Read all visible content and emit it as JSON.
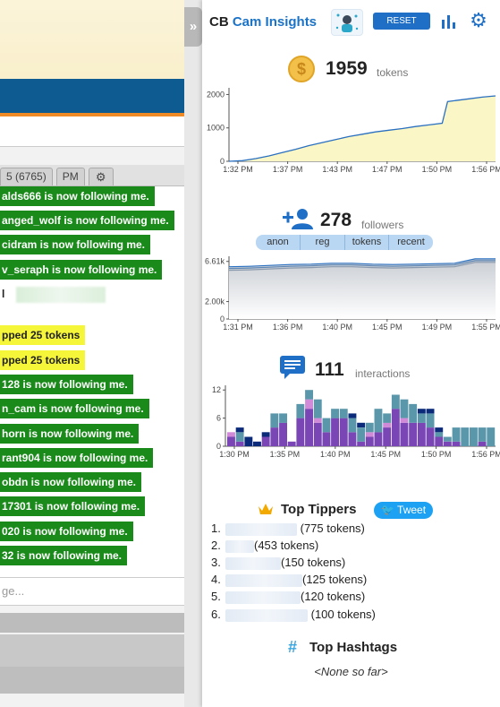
{
  "background": {
    "tabs": [
      "5 (6765)",
      "PM"
    ],
    "messages": [
      {
        "text": "alds666 is now following me.",
        "kind": "follow"
      },
      {
        "text": "anged_wolf is now following me.",
        "kind": "follow"
      },
      {
        "text": "cidram is now following me.",
        "kind": "follow"
      },
      {
        "text": "v_seraph is now following me.",
        "kind": "follow"
      },
      {
        "text": "l",
        "kind": "plain"
      },
      {
        "text": "pped 25 tokens",
        "kind": "tip"
      },
      {
        "text": "pped 25 tokens",
        "kind": "tip"
      },
      {
        "text": "128 is now following me.",
        "kind": "follow"
      },
      {
        "text": "n_cam is now following me.",
        "kind": "follow"
      },
      {
        "text": "horn is now following me.",
        "kind": "follow"
      },
      {
        "text": "rant904 is now following me.",
        "kind": "follow"
      },
      {
        "text": "obdn is now following me.",
        "kind": "follow"
      },
      {
        "text": "17301 is now following me.",
        "kind": "follow"
      },
      {
        "text": "020 is now following me.",
        "kind": "follow"
      },
      {
        "text": "32 is now following me.",
        "kind": "follow"
      }
    ],
    "chat_placeholder": "ge..."
  },
  "panel": {
    "collapse_label": "»",
    "brand_prefix": "CB",
    "brand_name": "Cam Insights",
    "reset_label": "RESET",
    "tokens": {
      "value": "1959",
      "unit": "tokens"
    },
    "followers": {
      "value": "278",
      "unit": "followers"
    },
    "interactions": {
      "value": "111",
      "unit": "interactions"
    },
    "follower_filters": [
      "anon",
      "reg",
      "tokens",
      "recent"
    ],
    "top_tippers_title": "Top Tippers",
    "tweet_label": "Tweet",
    "tippers": [
      {
        "rank": "1.",
        "amount": "(775 tokens)"
      },
      {
        "rank": "2.",
        "amount": "(453 tokens)"
      },
      {
        "rank": "3.",
        "amount": "(150 tokens)"
      },
      {
        "rank": "4.",
        "amount": "(125 tokens)"
      },
      {
        "rank": "5.",
        "amount": "(120 tokens)"
      },
      {
        "rank": "6.",
        "amount": "(100 tokens)"
      }
    ],
    "hashtags_title": "Top Hashtags",
    "hashtags_empty": "<None so far>"
  },
  "chart_data": [
    {
      "type": "area",
      "title": "",
      "x_ticks": [
        "1:32 PM",
        "1:37 PM",
        "1:43 PM",
        "1:47 PM",
        "1:50 PM",
        "1:56 PM"
      ],
      "y_ticks": [
        0,
        1000,
        2000
      ],
      "ylim": [
        0,
        2200
      ],
      "x": [
        0,
        0.05,
        0.1,
        0.15,
        0.2,
        0.25,
        0.3,
        0.35,
        0.4,
        0.45,
        0.5,
        0.55,
        0.6,
        0.65,
        0.7,
        0.75,
        0.8,
        0.82,
        0.85,
        0.9,
        0.95,
        1.0
      ],
      "values": [
        0,
        20,
        80,
        160,
        260,
        360,
        470,
        560,
        650,
        740,
        810,
        880,
        930,
        980,
        1040,
        1090,
        1140,
        1790,
        1820,
        1870,
        1920,
        1959
      ],
      "colors": {
        "line": "#2a70c0",
        "fill": "#fbf6c6"
      }
    },
    {
      "type": "area",
      "title": "",
      "x_ticks": [
        "1:31 PM",
        "1:36 PM",
        "1:40 PM",
        "1:45 PM",
        "1:49 PM",
        "1:55 PM"
      ],
      "y_ticks": [
        "0",
        "2.00k",
        "6.61k"
      ],
      "ylim": [
        0,
        7200
      ],
      "series": [
        {
          "name": "",
          "values": [
            6000,
            6050,
            6150,
            6250,
            6300,
            6400,
            6400,
            6300,
            6250,
            6300,
            6350,
            6400,
            6900,
            6900
          ]
        },
        {
          "name": "",
          "values": [
            5800,
            5850,
            5950,
            6050,
            6100,
            6200,
            6200,
            6100,
            6050,
            6100,
            6150,
            6200,
            6700,
            6700
          ]
        },
        {
          "name": "",
          "values": [
            5600,
            5650,
            5750,
            5850,
            5900,
            6000,
            6000,
            5900,
            5850,
            5900,
            5950,
            6000,
            6500,
            6500
          ]
        }
      ],
      "colors": {
        "top": "#2a70c0",
        "fill": "#d8dbe0"
      }
    },
    {
      "type": "bar",
      "title": "",
      "x_ticks": [
        "1:30 PM",
        "1:35 PM",
        "1:40 PM",
        "1:45 PM",
        "1:50 PM",
        "1:56 PM"
      ],
      "y_ticks": [
        0,
        6,
        12
      ],
      "ylim": [
        0,
        13
      ],
      "stacked": true,
      "series": [
        {
          "name": "",
          "color": "#7a45b5",
          "values": [
            2,
            1,
            0,
            0,
            2,
            4,
            5,
            1,
            6,
            8,
            5,
            3,
            6,
            6,
            3,
            1,
            2,
            3,
            4,
            8,
            5,
            5,
            5,
            4,
            2,
            1,
            1,
            0,
            0,
            1,
            0
          ]
        },
        {
          "name": "",
          "color": "#d08ad8",
          "values": [
            1,
            0,
            0,
            0,
            0,
            0,
            0,
            0,
            0,
            2,
            1,
            0,
            0,
            0,
            0,
            0,
            1,
            0,
            1,
            0,
            1,
            0,
            0,
            0,
            0,
            0,
            0,
            0,
            0,
            0,
            0
          ]
        },
        {
          "name": "",
          "color": "#5b97aa",
          "values": [
            0,
            2,
            0,
            0,
            0,
            3,
            2,
            0,
            3,
            2,
            4,
            3,
            2,
            2,
            3,
            3,
            2,
            5,
            2,
            3,
            4,
            4,
            2,
            3,
            1,
            1,
            3,
            4,
            4,
            3,
            4
          ]
        },
        {
          "name": "",
          "color": "#0b2a7a",
          "values": [
            0,
            1,
            2,
            1,
            1,
            0,
            0,
            0,
            0,
            0,
            0,
            0,
            0,
            0,
            1,
            1,
            0,
            0,
            0,
            0,
            0,
            0,
            1,
            1,
            1,
            0,
            0,
            0,
            0,
            0,
            0
          ]
        }
      ]
    }
  ]
}
